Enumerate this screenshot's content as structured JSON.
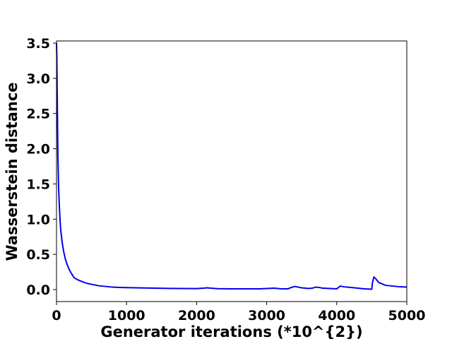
{
  "chart_data": {
    "type": "line",
    "title": "",
    "xlabel": "Generator iterations (*10^{2})",
    "ylabel": "Wasserstein distance",
    "xlim": [
      0,
      5000
    ],
    "ylim": [
      -0.17,
      3.53
    ],
    "x_ticks": [
      0,
      1000,
      2000,
      3000,
      4000,
      5000
    ],
    "x_tick_labels": [
      "0",
      "1000",
      "2000",
      "3000",
      "4000",
      "5000"
    ],
    "y_ticks": [
      0.0,
      0.5,
      1.0,
      1.5,
      2.0,
      2.5,
      3.0,
      3.5
    ],
    "y_tick_labels": [
      "0.0",
      "0.5",
      "1.0",
      "1.5",
      "2.0",
      "2.5",
      "3.0",
      "3.5"
    ],
    "grid": false,
    "legend": "none",
    "series": [
      {
        "color": "#0000ee",
        "x": [
          0,
          5,
          10,
          20,
          30,
          40,
          50,
          60,
          80,
          100,
          125,
          150,
          175,
          200,
          250,
          300,
          350,
          400,
          450,
          500,
          600,
          700,
          800,
          900,
          1000,
          1200,
          1400,
          1600,
          1800,
          2000,
          2100,
          2150,
          2200,
          2300,
          2500,
          2700,
          2900,
          3000,
          3100,
          3200,
          3300,
          3350,
          3400,
          3450,
          3500,
          3600,
          3650,
          3700,
          3750,
          3800,
          3900,
          4000,
          4050,
          4100,
          4200,
          4300,
          4400,
          4500,
          4510,
          4530,
          4560,
          4600,
          4650,
          4700,
          4800,
          4900,
          5000
        ],
        "values": [
          3.5,
          3.3,
          2.8,
          1.9,
          1.45,
          1.2,
          1.0,
          0.85,
          0.68,
          0.55,
          0.44,
          0.36,
          0.3,
          0.25,
          0.17,
          0.14,
          0.12,
          0.1,
          0.085,
          0.075,
          0.055,
          0.045,
          0.035,
          0.03,
          0.028,
          0.024,
          0.02,
          0.017,
          0.015,
          0.014,
          0.02,
          0.025,
          0.02,
          0.013,
          0.01,
          0.01,
          0.01,
          0.015,
          0.02,
          0.012,
          0.01,
          0.03,
          0.045,
          0.035,
          0.025,
          0.015,
          0.02,
          0.035,
          0.03,
          0.02,
          0.015,
          0.01,
          0.05,
          0.04,
          0.03,
          0.02,
          0.01,
          0.005,
          0.1,
          0.18,
          0.15,
          0.1,
          0.08,
          0.06,
          0.05,
          0.04,
          0.035
        ]
      }
    ]
  }
}
